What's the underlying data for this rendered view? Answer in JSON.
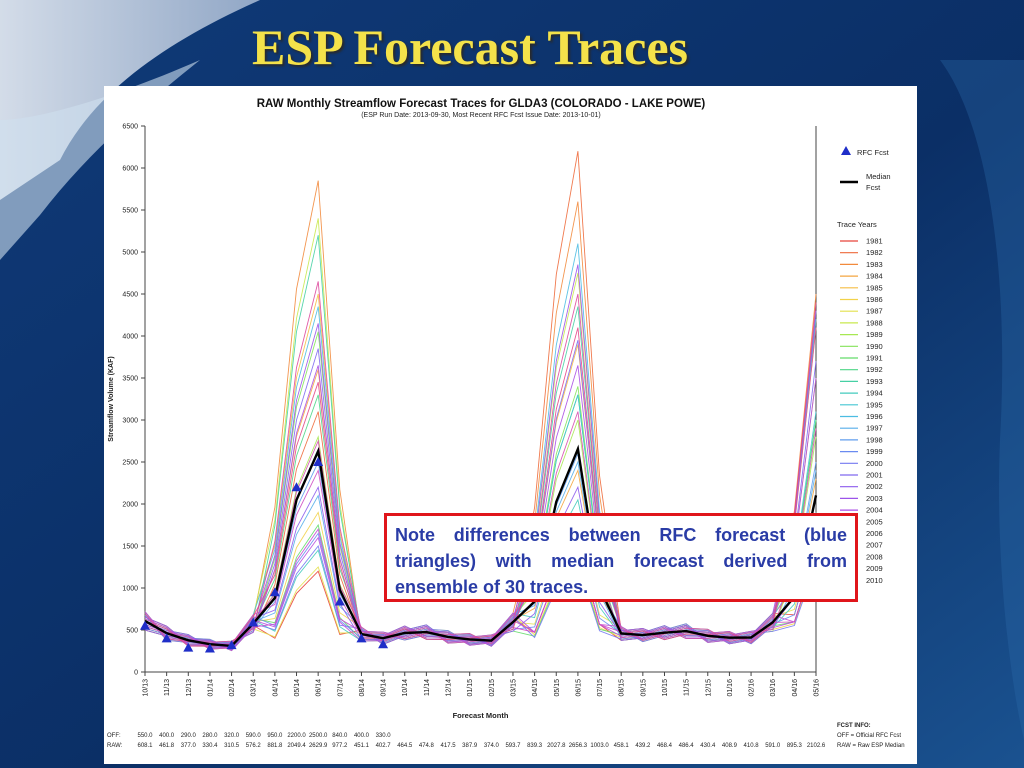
{
  "slide": {
    "title": "ESP Forecast Traces"
  },
  "note": {
    "text": "Note differences between RFC forecast (blue triangles) with median forecast derived from ensemble of 30 traces."
  },
  "chart_data": {
    "type": "line",
    "title": "RAW Monthly Streamflow Forecast Traces for GLDA3 (COLORADO - LAKE POWE)",
    "subtitle": "(ESP Run Date: 2013-09-30, Most Recent RFC Fcst Issue Date: 2013-10-01)",
    "xlabel": "Forecast Month",
    "ylabel": "Streamflow Volume (KAF)",
    "ylim": [
      0,
      6500
    ],
    "yticks": [
      0,
      500,
      1000,
      1500,
      2000,
      2500,
      3000,
      3500,
      4000,
      4500,
      5000,
      5500,
      6000,
      6500
    ],
    "grid": false,
    "legend_position": "right",
    "categories": [
      "10/13",
      "11/13",
      "12/13",
      "01/14",
      "02/14",
      "03/14",
      "04/14",
      "05/14",
      "06/14",
      "07/14",
      "08/14",
      "09/14",
      "10/14",
      "11/14",
      "12/14",
      "01/15",
      "02/15",
      "03/15",
      "04/15",
      "05/15",
      "06/15",
      "07/15",
      "08/15",
      "09/15",
      "10/15",
      "11/15",
      "12/15",
      "01/16",
      "02/16",
      "03/16",
      "04/16",
      "05/16"
    ],
    "rfc_fcst": {
      "name": "RFC Fcst",
      "values": [
        550.0,
        400.0,
        290.0,
        280.0,
        320.0,
        590.0,
        950.0,
        2200.0,
        2500.0,
        840.0,
        400.0,
        330.0
      ]
    },
    "median_fcst": {
      "name": "Median Fcst",
      "values": [
        608.1,
        461.8,
        377.0,
        330.4,
        310.5,
        576.2,
        881.8,
        2049.4,
        2629.9,
        977.2,
        451.1,
        402.7,
        464.5,
        474.8,
        417.5,
        387.9,
        374.0,
        593.7,
        839.3,
        2027.8,
        2656.3,
        1003.0,
        458.1,
        439.2,
        468.4,
        486.4,
        430.4,
        408.9,
        410.8,
        591.0,
        895.3,
        2102.6
      ]
    },
    "trace_years": {
      "title": "Trace Years",
      "years": [
        "1981",
        "1982",
        "1983",
        "1984",
        "1985",
        "1986",
        "1987",
        "1988",
        "1989",
        "1990",
        "1991",
        "1992",
        "1993",
        "1994",
        "1995",
        "1996",
        "1997",
        "1998",
        "1999",
        "2000",
        "2001",
        "2002",
        "2003",
        "2004",
        "2005",
        "2006",
        "2007",
        "2008",
        "2009",
        "2010"
      ],
      "colors": [
        "#e8433a",
        "#ee6a3b",
        "#f28a3c",
        "#f4a640",
        "#f5be45",
        "#f2d24a",
        "#e3e04d",
        "#c9e84f",
        "#a7e852",
        "#84e35a",
        "#64dc6a",
        "#4fd687",
        "#46d0a4",
        "#43cbbd",
        "#45c6d3",
        "#4cbde2",
        "#56aeea",
        "#609dee",
        "#6a8bf0",
        "#7479f1",
        "#8069ef",
        "#8d5ced",
        "#9c54ea",
        "#ab4fe6",
        "#ba4cdf",
        "#c54bd2",
        "#cf4bc2",
        "#d74bb0",
        "#de4a9d",
        "#e34788"
      ],
      "peak1": [
        1200,
        3100,
        5850,
        3600,
        4500,
        1900,
        1250,
        5400,
        2800,
        4050,
        1750,
        3300,
        5200,
        1450,
        2650,
        4350,
        2100,
        2500,
        1650,
        1500,
        3850,
        2200,
        4150,
        3650,
        1600,
        1700,
        2400,
        2750,
        4650,
        3450
      ],
      "peak2": [
        1500,
        6200,
        5600,
        2400,
        3900,
        1400,
        1800,
        4750,
        3000,
        3400,
        1350,
        3300,
        4350,
        2050,
        3300,
        5100,
        2500,
        2600,
        1700,
        1300,
        3950,
        2200,
        4850,
        3650,
        1500,
        1500,
        1500,
        3100,
        4500,
        4100
      ],
      "peak3": [
        1600,
        4200,
        4500,
        2300,
        3500,
        1350,
        1750,
        4100,
        2800,
        3000,
        1400,
        3000,
        4300,
        1900,
        3100,
        4200,
        2400,
        2500,
        1600,
        1300,
        3700,
        2100,
        4300,
        3500,
        1400,
        1400,
        1400,
        2900,
        4100,
        4400
      ]
    },
    "off_values": [
      550.0,
      400.0,
      290.0,
      280.0,
      320.0,
      590.0,
      950.0,
      2200.0,
      2500.0,
      840.0,
      400.0,
      330.0
    ],
    "raw_values": [
      608.1,
      461.8,
      377.0,
      330.4,
      310.5,
      576.2,
      881.8,
      2049.4,
      2629.9,
      977.2,
      451.1,
      402.7,
      464.5,
      474.8,
      417.5,
      387.9,
      374.0,
      593.7,
      839.3,
      2027.8,
      2656.3,
      1003.0,
      458.1,
      439.2,
      468.4,
      486.4,
      430.4,
      408.9,
      410.8,
      591.0,
      895.3,
      2102.6
    ],
    "off_row_label": "OFF:",
    "raw_row_label": "RAW:",
    "fcst_info": {
      "heading": "FCST INFO:",
      "line1": "OFF = Official RFC Fcst",
      "line2": "RAW = Raw ESP Median"
    }
  }
}
